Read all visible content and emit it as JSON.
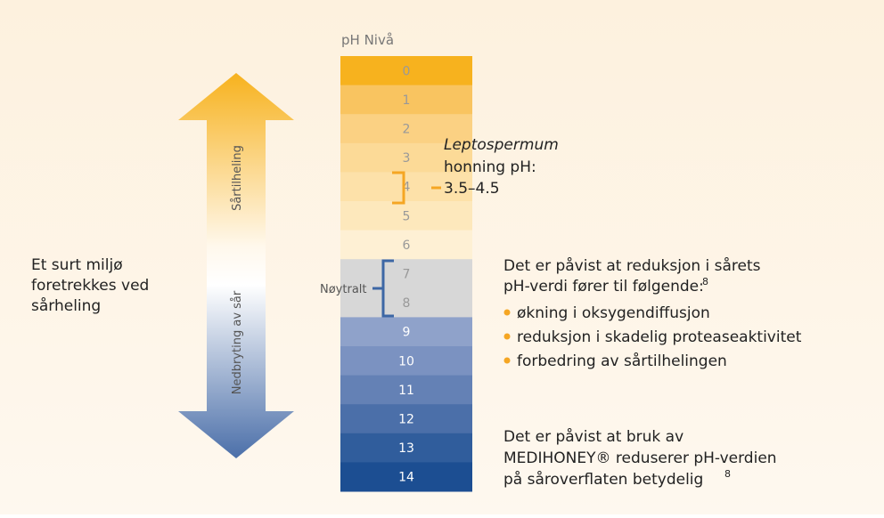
{
  "scale": {
    "title": "pH Nivå",
    "levels": [
      {
        "label": "0",
        "color": "#f7b21e"
      },
      {
        "label": "1",
        "color": "#f9c460"
      },
      {
        "label": "2",
        "color": "#fbd183"
      },
      {
        "label": "3",
        "color": "#fcda97"
      },
      {
        "label": "4",
        "color": "#fde1a9"
      },
      {
        "label": "5",
        "color": "#fde8bc"
      },
      {
        "label": "6",
        "color": "#fef0d4"
      },
      {
        "label": "7",
        "color": "#d7d7d7"
      },
      {
        "label": "8",
        "color": "#d7d7d7"
      },
      {
        "label": "9",
        "color": "#8fa2ca"
      },
      {
        "label": "10",
        "color": "#7b92c1"
      },
      {
        "label": "11",
        "color": "#6481b5"
      },
      {
        "label": "12",
        "color": "#4b6fa9"
      },
      {
        "label": "13",
        "color": "#305d9c"
      },
      {
        "label": "14",
        "color": "#1c4e92"
      }
    ]
  },
  "arrow": {
    "top_label": "Sårtilheling",
    "bottom_label": "Nedbryting av sår"
  },
  "left_text": [
    "Et surt miljø",
    "foretrekkes ved",
    "sårheling"
  ],
  "honey_note": {
    "italic": "Leptospermum",
    "lines": [
      "honning pH:",
      "3.5–4.5"
    ]
  },
  "neutral_label": "Nøytralt",
  "findings": {
    "intro": [
      "Det er påvist at reduksjon i sårets",
      "pH-verdi fører til følgende:"
    ],
    "sup": "8",
    "bullets": [
      "økning i oksygendiffusjon",
      "reduksjon i skadelig proteaseaktivitet",
      "forbedring av sårtilhelingen"
    ]
  },
  "conclusion": {
    "lines": [
      "Det er påvist at bruk av",
      "MEDIHONEY® reduserer pH-verdien",
      "på såroverflaten betydelig"
    ],
    "sup": "8"
  }
}
